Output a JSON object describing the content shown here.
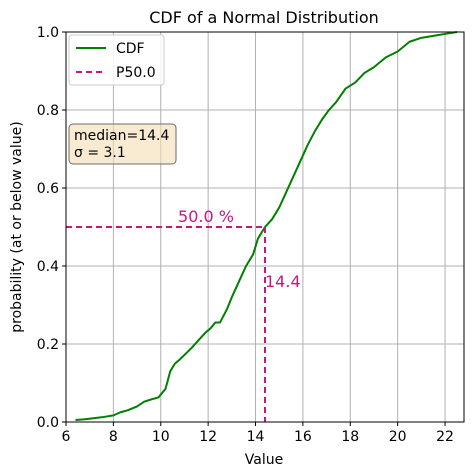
{
  "chart_data": {
    "type": "line",
    "title": "CDF of a Normal Distribution",
    "xlabel": "Value",
    "ylabel": "probability (at or below value)",
    "xlim": [
      6,
      22.8
    ],
    "ylim": [
      0,
      1
    ],
    "xticks": [
      6,
      8,
      10,
      12,
      14,
      16,
      18,
      20,
      22
    ],
    "yticks": [
      0.0,
      0.2,
      0.4,
      0.6,
      0.8,
      1.0
    ],
    "grid": true,
    "legend": {
      "placement": "top-left",
      "entries": [
        "CDF",
        "P50.0"
      ]
    },
    "series": [
      {
        "name": "CDF",
        "color": "#008000",
        "x": [
          6.4,
          6.8,
          7.2,
          7.6,
          8.0,
          8.3,
          8.6,
          9.0,
          9.3,
          9.6,
          9.9,
          10.2,
          10.4,
          10.6,
          10.8,
          11.0,
          11.3,
          11.6,
          11.9,
          12.1,
          12.3,
          12.5,
          12.8,
          13.0,
          13.3,
          13.6,
          13.9,
          14.1,
          14.3,
          14.4,
          14.7,
          15.0,
          15.3,
          15.6,
          15.9,
          16.2,
          16.5,
          16.8,
          17.1,
          17.4,
          17.8,
          18.2,
          18.6,
          19.0,
          19.5,
          20.0,
          20.5,
          21.0,
          21.5,
          22.0,
          22.5
        ],
        "y": [
          0.005,
          0.007,
          0.01,
          0.013,
          0.017,
          0.025,
          0.03,
          0.04,
          0.052,
          0.058,
          0.063,
          0.085,
          0.13,
          0.15,
          0.16,
          0.172,
          0.19,
          0.21,
          0.23,
          0.24,
          0.255,
          0.255,
          0.29,
          0.32,
          0.36,
          0.4,
          0.43,
          0.47,
          0.49,
          0.5,
          0.52,
          0.55,
          0.59,
          0.63,
          0.67,
          0.71,
          0.745,
          0.775,
          0.8,
          0.82,
          0.855,
          0.87,
          0.895,
          0.91,
          0.935,
          0.95,
          0.975,
          0.985,
          0.99,
          0.995,
          1.0
        ]
      }
    ],
    "percentile_line": {
      "name": "P50.0",
      "color": "#c71585",
      "x": 14.4,
      "y": 0.5
    },
    "annotations": {
      "percent_label": "50.0 %",
      "value_label": "14.4"
    },
    "stats_box": {
      "line1": "median=14.4",
      "line2": "σ = 3.1"
    },
    "colors": {
      "cdf": "#008000",
      "percentile": "#c71585",
      "stats_bg": "#f5deb3",
      "grid": "#b0b0b0"
    }
  }
}
